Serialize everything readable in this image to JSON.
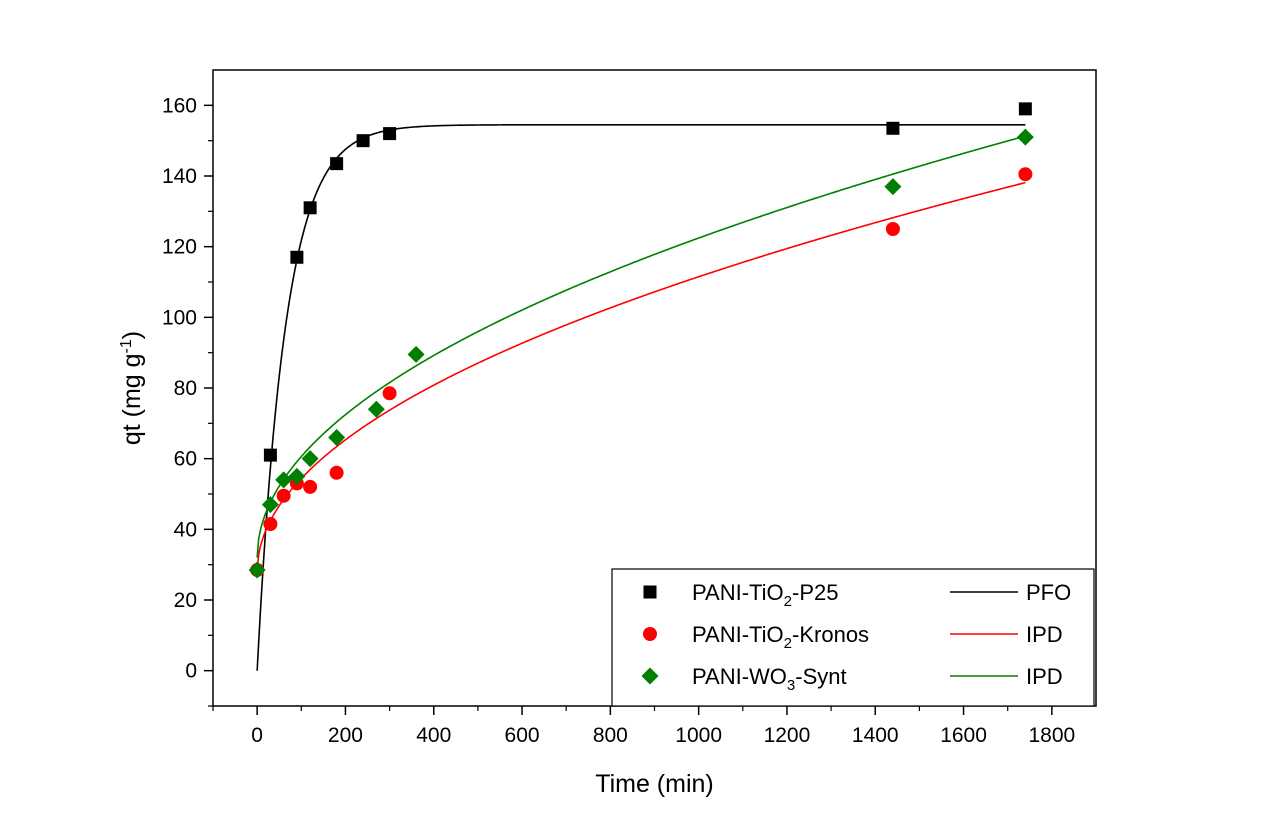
{
  "chart_data": {
    "type": "scatter",
    "title": "",
    "xlabel": "Time (min)",
    "ylabel_main": "qt (mg g",
    "ylabel_sup": "-1",
    "ylabel_tail": ")",
    "xlim": [
      -100,
      1900
    ],
    "ylim": [
      -10,
      170
    ],
    "xticks": [
      0,
      200,
      400,
      600,
      800,
      1000,
      1200,
      1400,
      1600,
      1800
    ],
    "yticks": [
      0,
      20,
      40,
      60,
      80,
      100,
      120,
      140,
      160
    ],
    "grid": false,
    "legend_position": "bottom-right",
    "series": [
      {
        "id": "p25",
        "name_parts": [
          "PANI-TiO",
          "2",
          "-P25"
        ],
        "fit_label": "PFO",
        "color": "#000000",
        "marker": "square",
        "x": [
          30,
          90,
          120,
          180,
          240,
          300,
          1440,
          1740
        ],
        "y": [
          61,
          117,
          131,
          143.5,
          150,
          152,
          153.5,
          159
        ],
        "fit": {
          "model": "PFO",
          "qe": 154.5,
          "k1": 0.0155,
          "x_start": 0,
          "x_end": 1740
        }
      },
      {
        "id": "kronos",
        "name_parts": [
          "PANI-TiO",
          "2",
          "-Kronos"
        ],
        "fit_label": "IPD",
        "color": "#ff0000",
        "marker": "circle",
        "x": [
          0,
          30,
          60,
          90,
          120,
          180,
          300,
          1440,
          1740
        ],
        "y": [
          28.5,
          41.5,
          49.5,
          53,
          52,
          56,
          78.5,
          125,
          140.5
        ],
        "fit": {
          "model": "IPD",
          "c": 28,
          "kid": 2.64,
          "x_start": 0,
          "x_end": 1740
        }
      },
      {
        "id": "wo3",
        "name_parts": [
          "PANI-WO",
          "3",
          "-Synt"
        ],
        "fit_label": "IPD",
        "color": "#007f00",
        "marker": "diamond",
        "x": [
          0,
          30,
          60,
          90,
          120,
          180,
          270,
          360,
          1440,
          1740
        ],
        "y": [
          28.5,
          47,
          54,
          55,
          60,
          66,
          74,
          89.5,
          137,
          151
        ],
        "fit": {
          "model": "IPD",
          "c": 32,
          "kid": 2.86,
          "x_start": 0,
          "x_end": 1740
        }
      }
    ]
  }
}
